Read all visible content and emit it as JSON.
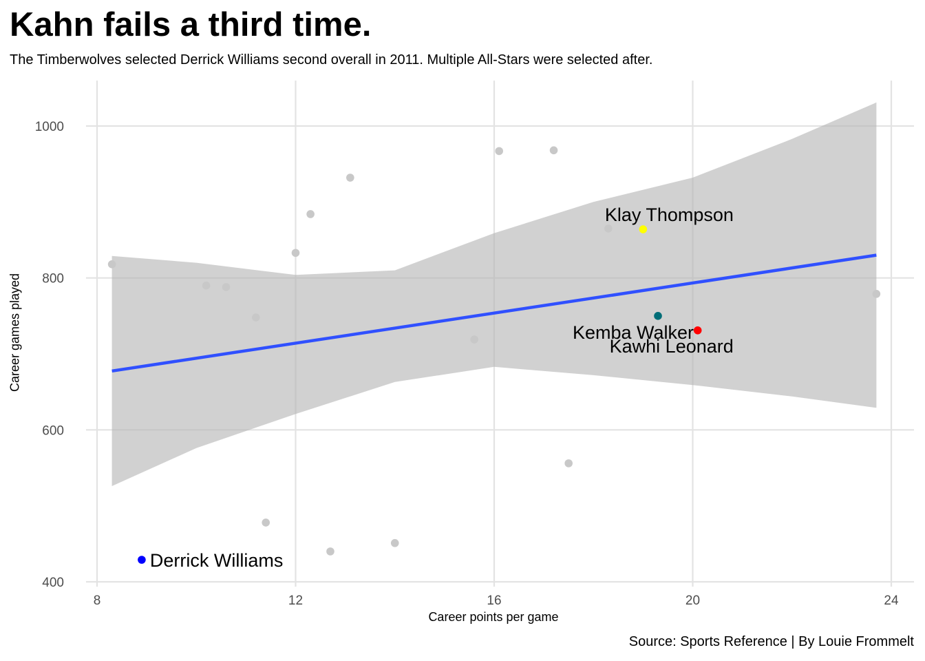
{
  "title": "Kahn fails a third time.",
  "subtitle": "The Timberwolves selected Derrick Williams second overall in 2011. Multiple All-Stars were selected after.",
  "caption": "Source: Sports Reference | By Louie Frommelt",
  "chart_data": {
    "type": "scatter",
    "xlabel": "Career points per game",
    "ylabel": "Career games played",
    "xlim": [
      7.95,
      24.45
    ],
    "ylim": [
      400,
      1050
    ],
    "xticks": [
      8,
      12,
      16,
      20,
      24
    ],
    "yticks": [
      400,
      600,
      800,
      1000
    ],
    "grid": true,
    "colors": {
      "background_points": "#c8c8c8",
      "trend_line": "#3050ff",
      "confidence_band": "#b4b4b4",
      "gridline": "#e3e3e3"
    },
    "points": [
      {
        "x": 8.3,
        "y": 818
      },
      {
        "x": 10.2,
        "y": 790
      },
      {
        "x": 10.6,
        "y": 788
      },
      {
        "x": 11.2,
        "y": 748
      },
      {
        "x": 11.4,
        "y": 478
      },
      {
        "x": 12.0,
        "y": 833
      },
      {
        "x": 12.3,
        "y": 884
      },
      {
        "x": 12.7,
        "y": 440
      },
      {
        "x": 13.1,
        "y": 932
      },
      {
        "x": 14.0,
        "y": 451
      },
      {
        "x": 15.6,
        "y": 719
      },
      {
        "x": 16.1,
        "y": 967
      },
      {
        "x": 17.2,
        "y": 968
      },
      {
        "x": 17.5,
        "y": 556
      },
      {
        "x": 18.3,
        "y": 865
      },
      {
        "x": 23.7,
        "y": 779
      }
    ],
    "highlighted": [
      {
        "label": "Derrick Williams",
        "x": 8.9,
        "y": 429,
        "color": "#0000ff"
      },
      {
        "label": "Klay Thompson",
        "x": 19.0,
        "y": 864,
        "color": "#ffff00"
      },
      {
        "label": "Kemba Walker",
        "x": 19.3,
        "y": 750,
        "color": "#006d77"
      },
      {
        "label": "Kawhi Leonard",
        "x": 20.1,
        "y": 731,
        "color": "#ff0000"
      }
    ],
    "trend": {
      "x": [
        8.3,
        23.7
      ],
      "y": [
        677.5,
        830
      ]
    },
    "confidence_band": {
      "x": [
        8.3,
        10,
        12,
        14,
        16,
        18,
        20,
        22,
        23.7
      ],
      "upper": [
        829,
        820,
        804,
        810,
        859,
        900,
        932,
        983,
        1031
      ],
      "lower": [
        526,
        576,
        621,
        663,
        683,
        672,
        659,
        644,
        629
      ]
    }
  }
}
